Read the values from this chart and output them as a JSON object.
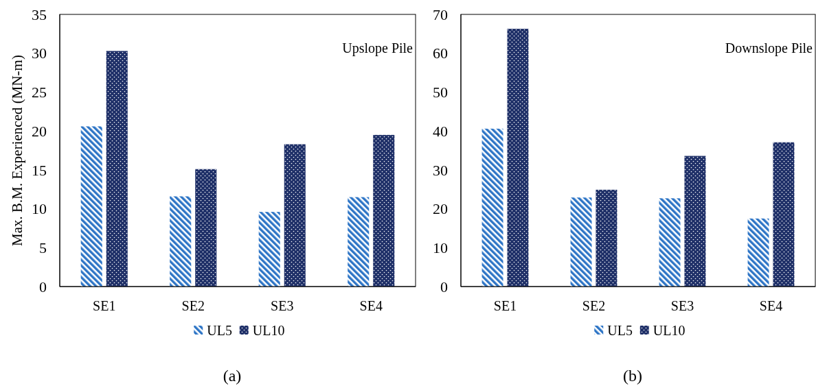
{
  "chart_data": [
    {
      "type": "bar",
      "categories": [
        "SE1",
        "SE2",
        "SE3",
        "SE4"
      ],
      "series": [
        {
          "name": "UL5",
          "color": "#2e75c6",
          "values": [
            20.6,
            11.6,
            9.6,
            11.5
          ]
        },
        {
          "name": "UL10",
          "color": "#1f3068",
          "values": [
            30.3,
            15.1,
            18.3,
            19.5
          ]
        }
      ],
      "ylabel": "Max. B.M. Experienced (MN-m)",
      "ylim": [
        0,
        35
      ],
      "yticks": [
        0,
        5,
        10,
        15,
        20,
        25,
        30,
        35
      ],
      "legend": "bottom",
      "annotations": [
        "Upslope Pile",
        "(a)"
      ]
    },
    {
      "type": "bar",
      "categories": [
        "SE1",
        "SE2",
        "SE3",
        "SE4"
      ],
      "series": [
        {
          "name": "UL5",
          "color": "#2e75c6",
          "values": [
            40.6,
            22.9,
            22.7,
            17.5
          ]
        },
        {
          "name": "UL10",
          "color": "#1f3068",
          "values": [
            66.3,
            24.9,
            33.6,
            37.1
          ]
        }
      ],
      "ylim": [
        0,
        70
      ],
      "yticks": [
        0,
        10,
        20,
        30,
        40,
        50,
        60,
        70
      ],
      "legend": "bottom",
      "annotations": [
        "Downslope Pile",
        "(b)"
      ]
    }
  ]
}
